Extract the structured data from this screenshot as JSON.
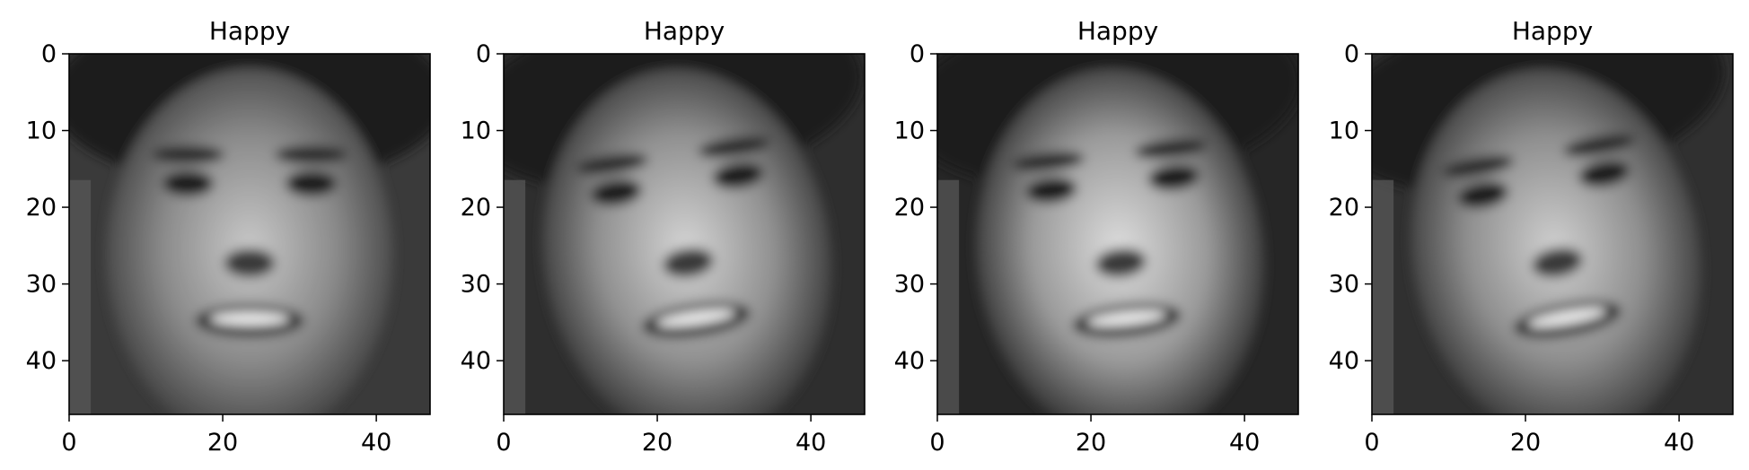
{
  "figure": {
    "panels": [
      {
        "title": "Happy",
        "image": "grayscale face, smiling man, dark hair",
        "x_ticks": [
          "0",
          "20",
          "40"
        ],
        "y_ticks": [
          "0",
          "10",
          "20",
          "30",
          "40"
        ],
        "tone": {
          "bg": "#3a3a3a",
          "face": "#8a8a8a",
          "hi": "#c8c8c8"
        }
      },
      {
        "title": "Happy",
        "image": "grayscale face, smiling man, tilted head",
        "x_ticks": [
          "0",
          "20",
          "40"
        ],
        "y_ticks": [
          "0",
          "10",
          "20",
          "30",
          "40"
        ],
        "tone": {
          "bg": "#2e2e2e",
          "face": "#909090",
          "hi": "#d4d4d4"
        }
      },
      {
        "title": "Happy",
        "image": "grayscale face, smiling woman",
        "x_ticks": [
          "0",
          "20",
          "40"
        ],
        "y_ticks": [
          "0",
          "10",
          "20",
          "30",
          "40"
        ],
        "tone": {
          "bg": "#262626",
          "face": "#9a9a9a",
          "hi": "#dcdcdc"
        }
      },
      {
        "title": "Happy",
        "image": "grayscale face, woman, tilted head",
        "x_ticks": [
          "0",
          "20",
          "40"
        ],
        "y_ticks": [
          "0",
          "10",
          "20",
          "30",
          "40"
        ],
        "tone": {
          "bg": "#303030",
          "face": "#8e8e8e",
          "hi": "#cfcfcf"
        }
      }
    ],
    "x_range": [
      0,
      47
    ],
    "y_range": [
      0,
      47
    ]
  }
}
